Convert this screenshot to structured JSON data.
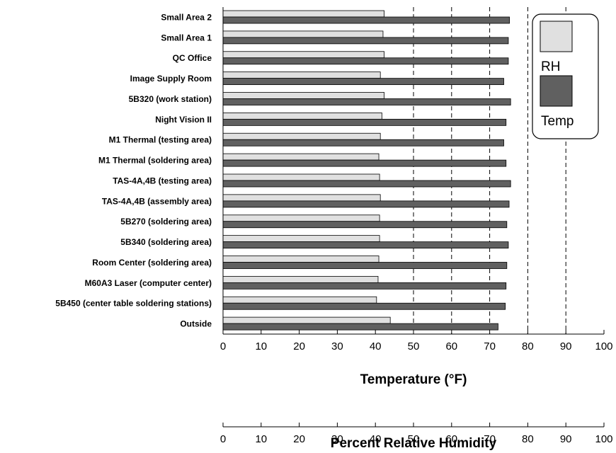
{
  "chart_data": {
    "type": "bar",
    "orientation": "horizontal",
    "categories": [
      "Small Area 2",
      "Small Area 1",
      "QC Office",
      "Image Supply Room",
      "5B320 (work station)",
      "Night Vision II",
      "M1 Thermal (testing area)",
      "M1 Thermal (soldering area)",
      "TAS-4A,4B (testing area)",
      "TAS-4A,4B (assembly area)",
      "5B270 (soldering area)",
      "5B340 (soldering area)",
      "Room Center (soldering area)",
      "M60A3 Laser (computer center)",
      "5B450 (center table soldering stations)",
      "Outside"
    ],
    "series": [
      {
        "name": "RH",
        "axis": "humidity",
        "color": "#e0e0e0",
        "values": [
          42.3,
          42.0,
          42.3,
          41.3,
          42.3,
          41.7,
          41.3,
          40.9,
          41.1,
          41.3,
          41.1,
          41.1,
          40.9,
          40.7,
          40.3,
          43.9
        ]
      },
      {
        "name": "Temp",
        "axis": "temperature",
        "color": "#606060",
        "values": [
          75.2,
          74.9,
          74.9,
          73.7,
          75.5,
          74.3,
          73.7,
          74.3,
          75.5,
          75.1,
          74.5,
          74.9,
          74.5,
          74.3,
          74.1,
          72.2
        ]
      }
    ],
    "axes": {
      "temperature": {
        "title": "Temperature (°F)",
        "range": [
          0,
          100
        ],
        "ticks": [
          "0",
          "10",
          "20",
          "30",
          "40",
          "50",
          "60",
          "70",
          "80",
          "90",
          "100"
        ]
      },
      "humidity": {
        "title": "Percent Relative Humidity",
        "range": [
          0,
          100
        ],
        "ticks": [
          "0",
          "10",
          "20",
          "30",
          "40",
          "50",
          "60",
          "70",
          "80",
          "90",
          "100"
        ]
      }
    },
    "gridlines": {
      "style": "dashed",
      "at": [
        50,
        60,
        70,
        80,
        90
      ]
    },
    "legend": {
      "position": "top-right",
      "entries": [
        "RH",
        "Temp"
      ]
    }
  }
}
